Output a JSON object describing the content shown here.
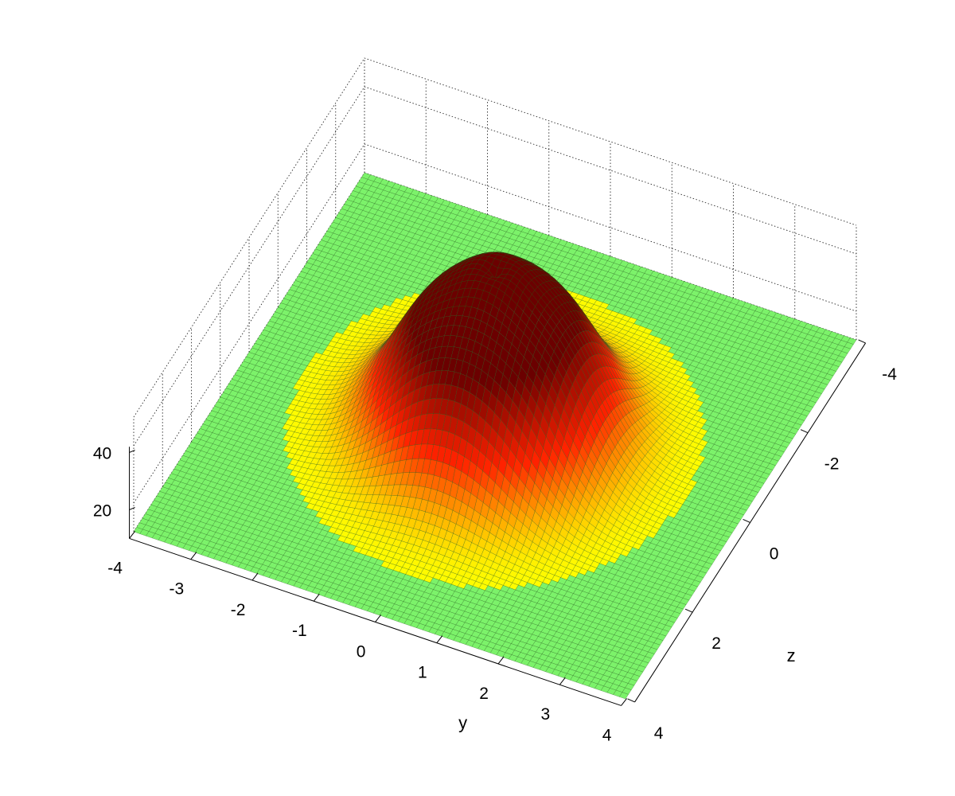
{
  "chart_data": {
    "type": "surface",
    "title": "",
    "xlabel": "y",
    "ylabel": "z",
    "zlabel": "",
    "x_ticks": [
      "-4",
      "-3",
      "-2",
      "-1",
      "0",
      "1",
      "2",
      "3",
      "4"
    ],
    "y_ticks": [
      "-4",
      "-2",
      "0",
      "2",
      "4"
    ],
    "z_ticks": [
      "20",
      "40"
    ],
    "xlim": [
      -4,
      4
    ],
    "ylim": [
      -4,
      4
    ],
    "zlim": [
      10,
      50
    ],
    "grid": true,
    "colormap": "hot (dark red to yellow) with flat regions in green",
    "surface": {
      "shape": "ring-shaped bump centered at origin with a crater on top",
      "peak_value": 50,
      "ring_radius": 1.0,
      "center_dip_value": 28,
      "base_value": 10
    },
    "colors": {
      "flat": "#7cf26a",
      "mesh": "#1e5a16",
      "low": "#ffff00",
      "mid": "#ff2200",
      "high": "#6b0000"
    }
  }
}
